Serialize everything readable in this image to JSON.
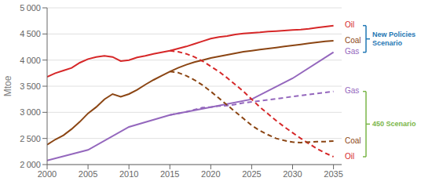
{
  "chart_data": {
    "type": "line",
    "ylabel": "Mtoe",
    "xlim": [
      2000,
      2036
    ],
    "xticks": [
      2000,
      2005,
      2010,
      2015,
      2020,
      2025,
      2030,
      2035
    ],
    "ylim": [
      2000,
      5000
    ],
    "yticks": [
      {
        "value": 2000,
        "label": "2 000"
      },
      {
        "value": 2500,
        "label": "2 500"
      },
      {
        "value": 3000,
        "label": "3 000"
      },
      {
        "value": 3500,
        "label": "3 500"
      },
      {
        "value": 4000,
        "label": "4 000"
      },
      {
        "value": 4500,
        "label": "4 500"
      },
      {
        "value": 5000,
        "label": "5 000"
      }
    ],
    "grid": "y",
    "series": [
      {
        "name": "Oil",
        "color": "#d62728",
        "line_style": "solid",
        "x": [
          2000,
          2001,
          2002,
          2003,
          2004,
          2005,
          2006,
          2007,
          2008,
          2009,
          2010,
          2011,
          2012,
          2013,
          2014,
          2015,
          2016,
          2017,
          2018,
          2019,
          2020,
          2021,
          2022,
          2023,
          2024,
          2025,
          2026,
          2027,
          2028,
          2029,
          2030,
          2031,
          2032,
          2033,
          2034,
          2035
        ],
        "values": [
          3680,
          3750,
          3800,
          3850,
          3950,
          4020,
          4060,
          4080,
          4060,
          3980,
          4000,
          4050,
          4080,
          4120,
          4150,
          4180,
          4220,
          4260,
          4310,
          4360,
          4410,
          4440,
          4460,
          4490,
          4510,
          4520,
          4530,
          4545,
          4555,
          4565,
          4575,
          4585,
          4600,
          4620,
          4640,
          4660
        ]
      },
      {
        "name": "Coal",
        "color": "#8B4513",
        "line_style": "solid",
        "x": [
          2000,
          2001,
          2002,
          2003,
          2004,
          2005,
          2006,
          2007,
          2008,
          2009,
          2010,
          2011,
          2012,
          2013,
          2014,
          2015,
          2016,
          2017,
          2018,
          2019,
          2020,
          2021,
          2022,
          2023,
          2024,
          2025,
          2026,
          2027,
          2028,
          2029,
          2030,
          2031,
          2032,
          2033,
          2034,
          2035
        ],
        "values": [
          2380,
          2480,
          2560,
          2680,
          2820,
          2980,
          3100,
          3250,
          3350,
          3300,
          3350,
          3430,
          3530,
          3620,
          3700,
          3780,
          3850,
          3910,
          3960,
          4000,
          4040,
          4070,
          4100,
          4130,
          4160,
          4180,
          4200,
          4220,
          4240,
          4260,
          4280,
          4300,
          4320,
          4340,
          4360,
          4370
        ]
      },
      {
        "name": "Gas",
        "color": "#9467bd",
        "line_style": "solid",
        "x": [
          2000,
          2005,
          2010,
          2015,
          2020,
          2025,
          2030,
          2035
        ],
        "values": [
          2080,
          2280,
          2720,
          2950,
          3100,
          3250,
          3650,
          4150
        ]
      },
      {
        "name": "Oil",
        "color": "#d62728",
        "line_style": "dashed",
        "x": [
          2015,
          2016,
          2017,
          2018,
          2019,
          2020,
          2021,
          2022,
          2023,
          2024,
          2025,
          2026,
          2027,
          2028,
          2029,
          2030,
          2031,
          2032,
          2033,
          2034,
          2035
        ],
        "values": [
          4180,
          4160,
          4120,
          4060,
          3980,
          3880,
          3780,
          3660,
          3530,
          3400,
          3250,
          3100,
          2970,
          2840,
          2720,
          2610,
          2500,
          2400,
          2300,
          2220,
          2150
        ]
      },
      {
        "name": "Gas",
        "color": "#9467bd",
        "line_style": "dashed",
        "x": [
          2015,
          2016,
          2017,
          2018,
          2019,
          2020,
          2021,
          2022,
          2023,
          2024,
          2025,
          2026,
          2027,
          2028,
          2029,
          2030,
          2031,
          2032,
          2033,
          2034,
          2035
        ],
        "values": [
          2950,
          2980,
          3010,
          3050,
          3090,
          3100,
          3120,
          3130,
          3150,
          3180,
          3200,
          3220,
          3240,
          3260,
          3280,
          3300,
          3320,
          3340,
          3360,
          3380,
          3400
        ]
      },
      {
        "name": "Coal",
        "color": "#8B4513",
        "line_style": "dashed",
        "x": [
          2015,
          2016,
          2017,
          2018,
          2019,
          2020,
          2021,
          2022,
          2023,
          2024,
          2025,
          2026,
          2027,
          2028,
          2029,
          2030,
          2031,
          2032,
          2033,
          2034,
          2035
        ],
        "values": [
          3780,
          3760,
          3700,
          3620,
          3520,
          3400,
          3270,
          3140,
          3010,
          2880,
          2750,
          2650,
          2570,
          2500,
          2460,
          2430,
          2420,
          2430,
          2440,
          2440,
          2450
        ]
      }
    ],
    "annotations": [
      {
        "text": [
          "New Policies",
          "Scenario"
        ],
        "color": "#1f77b4",
        "line_style": "solid"
      },
      {
        "text": [
          "450 Scenario"
        ],
        "color": "#7ab648",
        "line_style": "dashed"
      }
    ]
  }
}
